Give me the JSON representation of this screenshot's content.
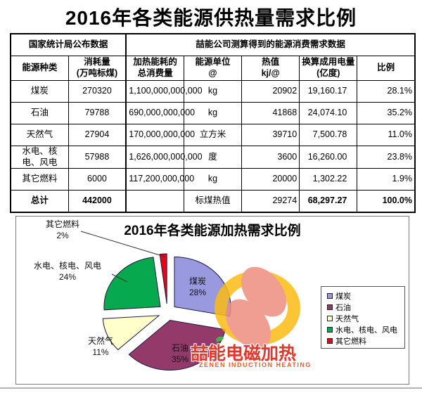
{
  "title": "2016年各类能源供热量需求比例",
  "table": {
    "section_headers": [
      {
        "label": "国家统计局公布数据",
        "colspan": 2
      },
      {
        "label": "喆能公司测算得到的能源消费需求数据",
        "colspan": 5
      }
    ],
    "columns": [
      "能源种类",
      "消耗量\n(万吨标煤)",
      "加热能耗的总消费量",
      "能源单位\n@",
      "热值\nkj/@",
      "换算成用电量\n(亿度)",
      "比例"
    ],
    "rows": [
      {
        "cells": [
          "煤炭",
          "270320",
          "1,100,000,000,000",
          "kg",
          "20902",
          "19,160.17",
          "28.1%"
        ],
        "is_total": false
      },
      {
        "cells": [
          "石油",
          "79788",
          "690,000,000,000",
          "kg",
          "41868",
          "24,074.10",
          "35.2%"
        ],
        "is_total": false
      },
      {
        "cells": [
          "天然气",
          "27904",
          "170,000,000,000",
          "立方米",
          "39710",
          "7,500.78",
          "11.0%"
        ],
        "is_total": false
      },
      {
        "cells": [
          "水电、核电、风电",
          "57988",
          "1,626,000,000,000",
          "度",
          "3600",
          "16,260.00",
          "23.8%"
        ],
        "is_total": false
      },
      {
        "cells": [
          "其它燃料",
          "6000",
          "117,200,000,000",
          "kg",
          "20000",
          "1,302.22",
          "1.9%"
        ],
        "is_total": false
      },
      {
        "cells": [
          "总计",
          "442000",
          "",
          "标煤热值",
          "29274",
          "68,297.27",
          "100.0%"
        ],
        "is_total": true
      }
    ]
  },
  "chart_data": {
    "type": "pie",
    "title": "2016年各类能源加热需求比例",
    "categories": [
      "煤炭",
      "石油",
      "天然气",
      "水电、核电、风电",
      "其它燃料"
    ],
    "values": [
      28,
      35,
      11,
      24,
      2
    ],
    "unit": "%",
    "colors": [
      "#9999E0",
      "#943A6B",
      "#FFFFCC",
      "#06A94D",
      "#E50713"
    ],
    "slice_border_color": "#1A1A40",
    "exploded": true,
    "legend_position": "right",
    "grid": false
  },
  "watermark": {
    "brand_cn": "喆能电磁加热",
    "brand_en": "ZENEN INDUCTION HEATING"
  }
}
